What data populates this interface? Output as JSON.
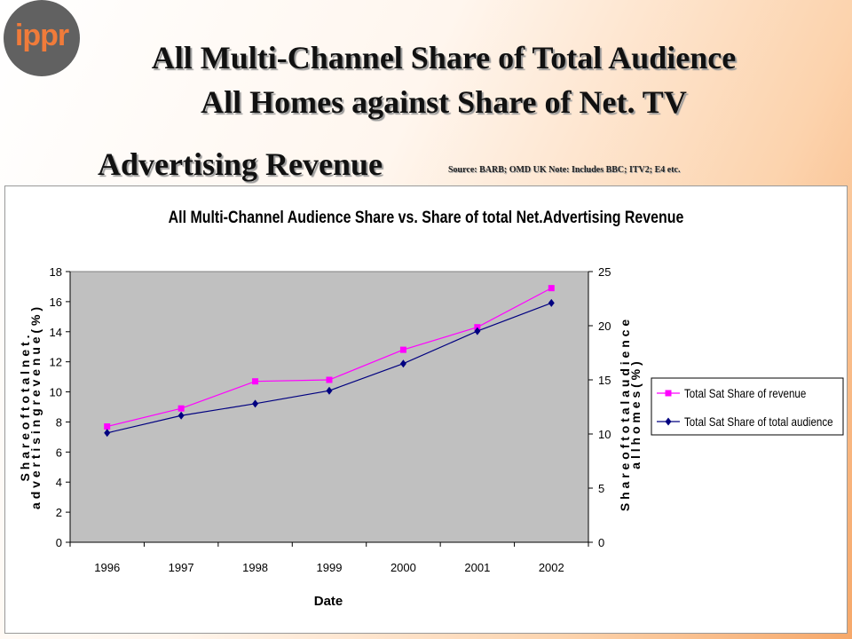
{
  "logo": {
    "text": "ippr"
  },
  "slide": {
    "title_line1": "All Multi-Channel Share of Total Audience",
    "title_line2": "All Homes against Share of Net. TV",
    "title_line3": "Advertising Revenue",
    "source_note": "Source: BARB; OMD UK Note: Includes BBC; ITV2; E4 etc."
  },
  "chart_data": {
    "type": "line",
    "title": "All Multi-Channel Audience Share vs. Share of total Net.Advertising Revenue",
    "xlabel": "Date",
    "ylabel_left": [
      "S h a r e  o f  t o t a l  n e t .",
      "a d v e r t i s i n g  r e v e n u e  ( %  )"
    ],
    "ylabel_right": [
      "S h a r e  o f  t o t a l  a u d i e n c e",
      "a l l  h o m e s  ( %  )"
    ],
    "categories": [
      "1996",
      "1997",
      "1998",
      "1999",
      "2000",
      "2001",
      "2002"
    ],
    "ylim_left": [
      0,
      18
    ],
    "yticks_left": [
      0,
      2,
      4,
      6,
      8,
      10,
      12,
      14,
      16,
      18
    ],
    "ylim_right": [
      0,
      25
    ],
    "yticks_right": [
      0,
      5,
      10,
      15,
      20,
      25
    ],
    "series": [
      {
        "name": "Total Sat Share of revenue",
        "axis": "left",
        "color": "#ff00ff",
        "marker": "square",
        "values": [
          7.7,
          8.9,
          10.7,
          10.8,
          12.8,
          14.3,
          16.9
        ]
      },
      {
        "name": "Total Sat Share of total audience",
        "axis": "right",
        "color": "#000080",
        "marker": "diamond",
        "values": [
          10.1,
          11.7,
          12.8,
          14.0,
          16.5,
          19.5,
          22.1
        ]
      }
    ],
    "plot_background": "#c0c0c0",
    "legend_position": "right",
    "grid": false
  }
}
